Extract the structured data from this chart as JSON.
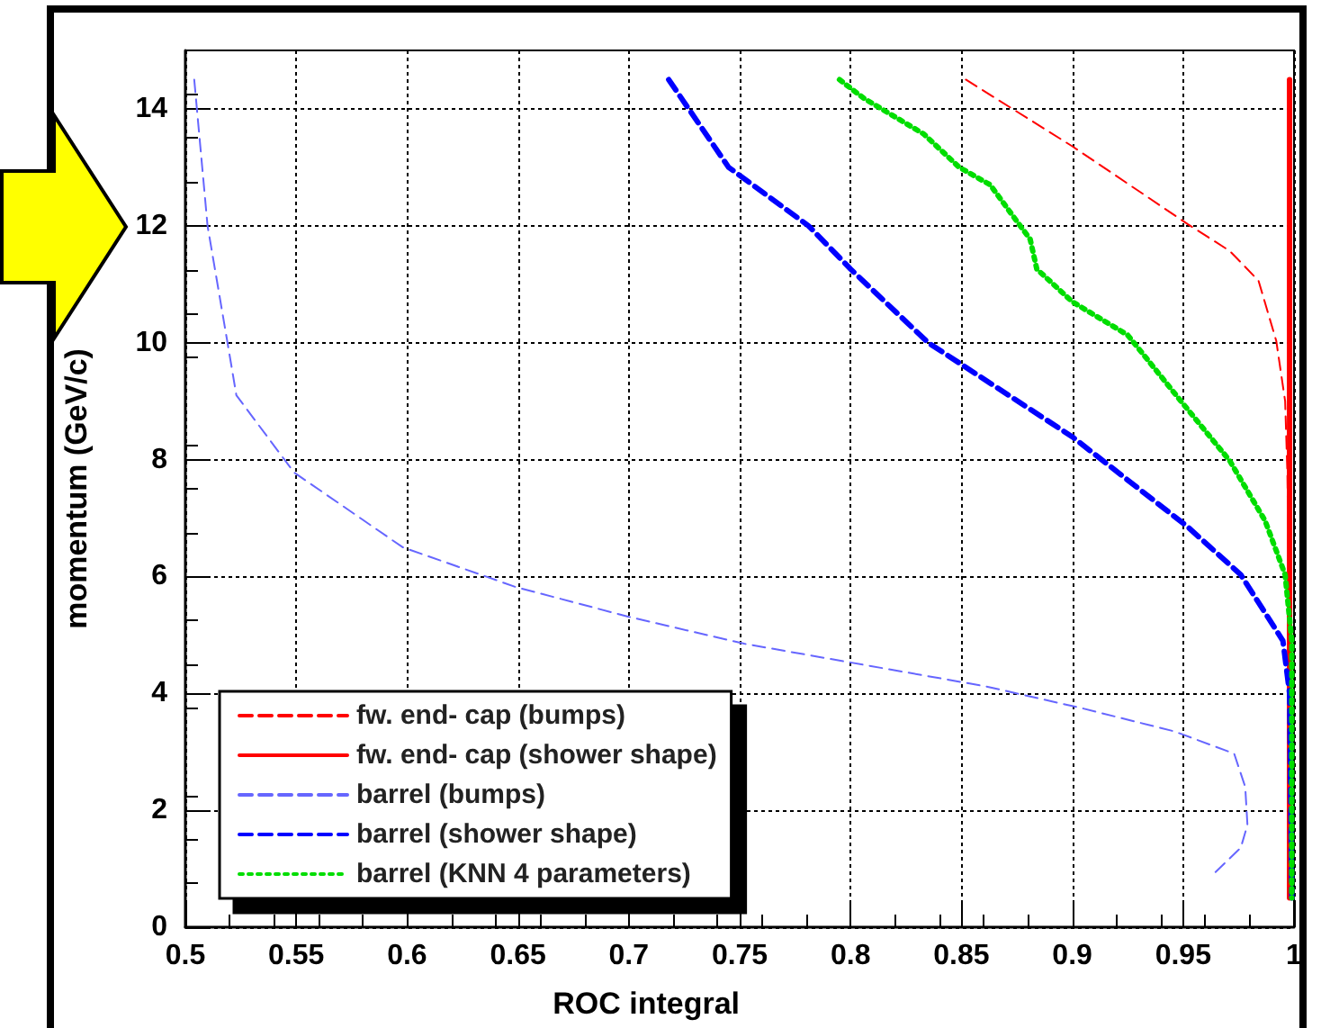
{
  "chart_data": {
    "type": "line",
    "xlabel": "ROC integral",
    "ylabel": "momentum (GeV/c)",
    "xlim": [
      0.5,
      1
    ],
    "xticks": [
      0.5,
      0.55,
      0.6,
      0.65,
      0.7,
      0.75,
      0.8,
      0.85,
      0.9,
      0.95,
      1
    ],
    "ylim": [
      0,
      15
    ],
    "yticks": [
      0,
      2,
      4,
      6,
      8,
      10,
      12,
      14
    ],
    "grid": true,
    "legend": "bottom left",
    "marker": "none",
    "series": [
      {
        "name": "fw. end- cap (bumps)",
        "color": "#ff0000",
        "line_style": "dashed",
        "x": [
          0.852,
          0.9,
          0.952,
          0.971,
          0.984,
          0.992,
          0.996,
          0.997,
          0.998,
          0.998
        ],
        "values": [
          14.5,
          13.36,
          12.03,
          11.57,
          11.06,
          10.03,
          9.0,
          7.78,
          5.0,
          0.5
        ]
      },
      {
        "name": "fw. end- cap (shower shape)",
        "color": "#ff0000",
        "line_style": "solid",
        "x": [
          0.998,
          0.998
        ],
        "values": [
          14.5,
          0.5
        ]
      },
      {
        "name": "barrel (bumps)",
        "color": "#6666ff",
        "line_style": "dashed",
        "x": [
          0.504,
          0.51,
          0.519,
          0.523,
          0.549,
          0.598,
          0.649,
          0.7,
          0.752,
          0.861,
          0.905,
          0.946,
          0.973,
          0.978,
          0.979,
          0.976,
          0.964
        ],
        "values": [
          14.5,
          12,
          10,
          9.1,
          7.78,
          6.5,
          5.82,
          5.31,
          4.85,
          4.12,
          3.74,
          3.35,
          2.97,
          2.4,
          1.75,
          1.36,
          0.92
        ]
      },
      {
        "name": "barrel (shower shape)",
        "color": "#0000ff",
        "line_style": "dashed",
        "x": [
          0.718,
          0.745,
          0.781,
          0.8,
          0.835,
          0.9,
          0.952,
          0.976,
          0.995,
          0.998,
          0.999
        ],
        "values": [
          14.5,
          13.0,
          12.0,
          11.26,
          10.0,
          8.39,
          6.85,
          6.03,
          4.9,
          4.0,
          0.5
        ]
      },
      {
        "name": "barrel (KNN 4 parameters)",
        "color": "#00dd00",
        "line_style": "dotted",
        "x": [
          0.795,
          0.806,
          0.833,
          0.849,
          0.863,
          0.873,
          0.881,
          0.884,
          0.9,
          0.925,
          0.949,
          0.971,
          0.987,
          0.996,
          0.999,
          0.999
        ],
        "values": [
          14.5,
          14.18,
          13.57,
          13.0,
          12.7,
          12.18,
          11.77,
          11.26,
          10.7,
          10.13,
          9.0,
          7.98,
          6.95,
          6.03,
          4.9,
          0.5
        ]
      }
    ]
  }
}
